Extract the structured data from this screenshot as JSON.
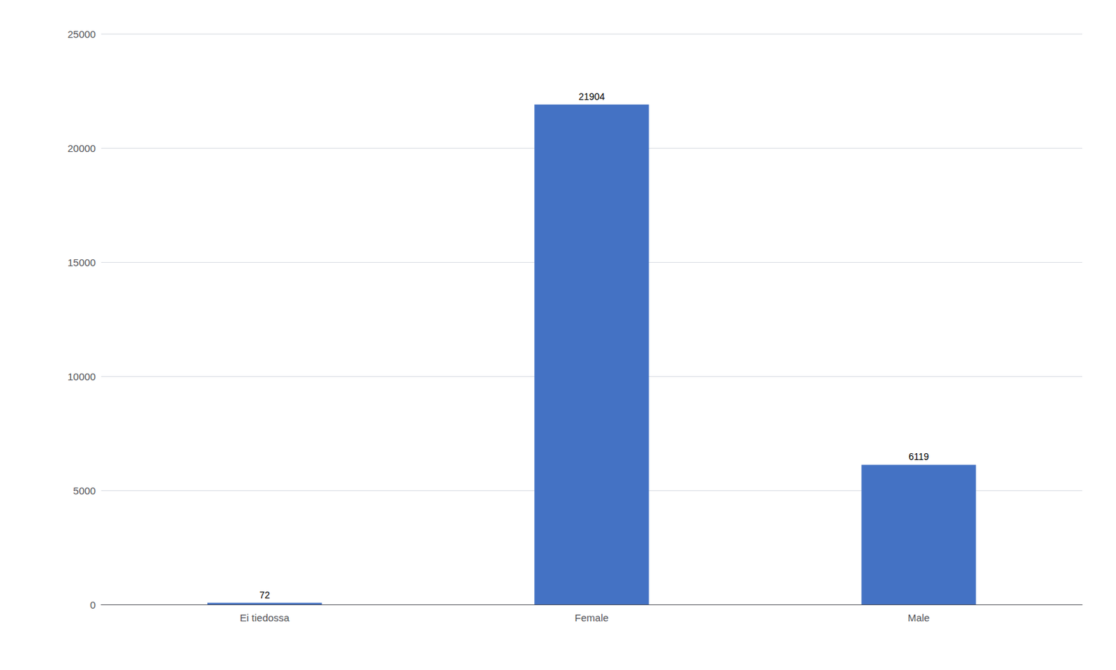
{
  "chart_data": {
    "type": "bar",
    "categories": [
      "Ei tiedossa",
      "Female",
      "Male"
    ],
    "values": [
      72,
      21904,
      6119
    ],
    "color": "#4472C4",
    "ylim": [
      0,
      25000
    ],
    "yticks": [
      0,
      5000,
      10000,
      15000,
      20000,
      25000
    ],
    "grid": true,
    "data_labels": true
  }
}
